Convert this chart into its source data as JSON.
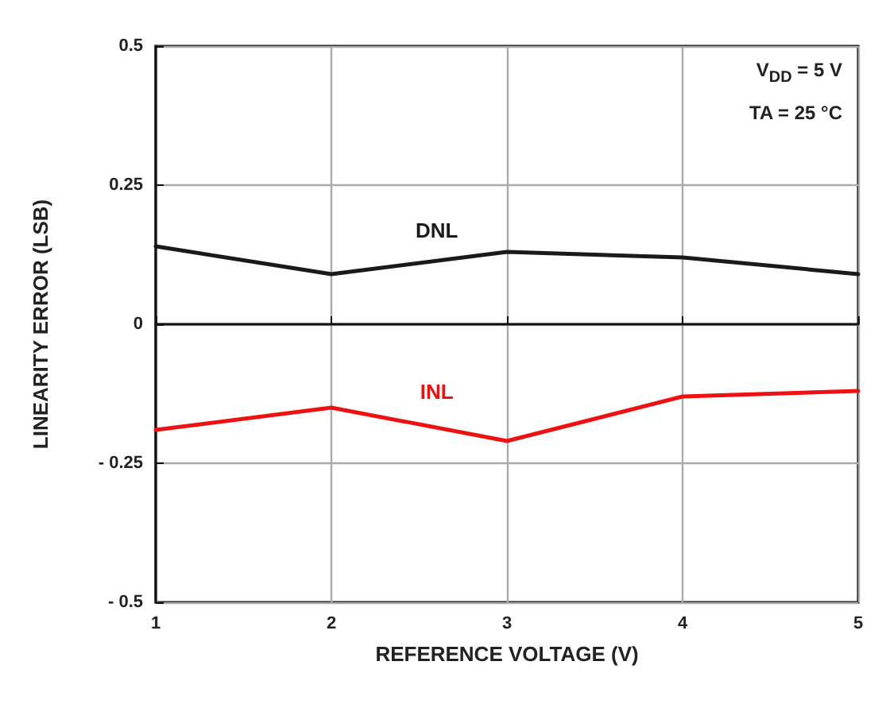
{
  "chart_data": {
    "type": "line",
    "xlabel": "REFERENCE VOLTAGE (V)",
    "ylabel": "LINEARITY ERROR (LSB)",
    "x": [
      1,
      2,
      3,
      4,
      5
    ],
    "series": [
      {
        "name": "DNL",
        "color": "#1a1a1a",
        "values": [
          0.14,
          0.09,
          0.13,
          0.12,
          0.09
        ]
      },
      {
        "name": "INL",
        "color": "#ee1111",
        "values": [
          -0.19,
          -0.15,
          -0.21,
          -0.13,
          -0.12
        ]
      }
    ],
    "xlim": [
      1,
      5
    ],
    "xticks": [
      1,
      2,
      3,
      4,
      5
    ],
    "ylim": [
      -0.5,
      0.5
    ],
    "yticks": [
      {
        "value": -0.5,
        "label": "- 0.5"
      },
      {
        "value": -0.25,
        "label": "- 0.25"
      },
      0,
      0.25,
      0.5
    ],
    "annotations": [
      "V$_{DD}$ = 5 V",
      "TA = 25 °C"
    ],
    "grid": true,
    "legend": false,
    "marker": "none",
    "line_style": "solid"
  }
}
